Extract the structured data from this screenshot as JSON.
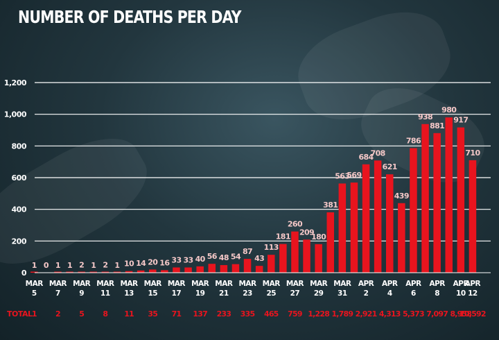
{
  "chart_data": {
    "type": "bar",
    "title": "NUMBER OF DEATHS PER DAY",
    "xlabel": "",
    "ylabel": "",
    "ylim": [
      0,
      1200
    ],
    "yticks": [
      0,
      200,
      400,
      600,
      800,
      1000,
      1200
    ],
    "ytick_labels": [
      "0",
      "200",
      "400",
      "600",
      "800",
      "1,000",
      "1,200"
    ],
    "colors": {
      "bar": "#e8141e",
      "text": "#ffffff",
      "value_label": "#f5c8c8",
      "total": "#e8141e",
      "grid": "#ffffff"
    },
    "values": [
      1,
      0,
      1,
      1,
      2,
      1,
      2,
      1,
      10,
      14,
      20,
      16,
      33,
      33,
      40,
      56,
      48,
      54,
      87,
      43,
      113,
      181,
      260,
      209,
      180,
      381,
      563,
      569,
      684,
      708,
      621,
      439,
      786,
      938,
      881,
      980,
      917,
      710
    ],
    "value_labels": [
      "1",
      "0",
      "1",
      "1",
      "2",
      "1",
      "2",
      "1",
      "10",
      "14",
      "20",
      "16",
      "33",
      "33",
      "40",
      "56",
      "48",
      "54",
      "87",
      "43",
      "113",
      "181",
      "260",
      "209",
      "180",
      "381",
      "563",
      "569",
      "684",
      "708",
      "621",
      "439",
      "786",
      "938",
      "881",
      "980",
      "917",
      "710"
    ],
    "x_ticks": [
      {
        "index": 0,
        "month": "MAR",
        "day": "5"
      },
      {
        "index": 2,
        "month": "MAR",
        "day": "7"
      },
      {
        "index": 4,
        "month": "MAR",
        "day": "9"
      },
      {
        "index": 6,
        "month": "MAR",
        "day": "11"
      },
      {
        "index": 8,
        "month": "MAR",
        "day": "13"
      },
      {
        "index": 10,
        "month": "MAR",
        "day": "15"
      },
      {
        "index": 12,
        "month": "MAR",
        "day": "17"
      },
      {
        "index": 14,
        "month": "MAR",
        "day": "19"
      },
      {
        "index": 16,
        "month": "MAR",
        "day": "21"
      },
      {
        "index": 18,
        "month": "MAR",
        "day": "23"
      },
      {
        "index": 20,
        "month": "MAR",
        "day": "25"
      },
      {
        "index": 22,
        "month": "MAR",
        "day": "27"
      },
      {
        "index": 24,
        "month": "MAR",
        "day": "29"
      },
      {
        "index": 26,
        "month": "MAR",
        "day": "31"
      },
      {
        "index": 28,
        "month": "APR",
        "day": "2"
      },
      {
        "index": 30,
        "month": "APR",
        "day": "4"
      },
      {
        "index": 32,
        "month": "APR",
        "day": "6"
      },
      {
        "index": 34,
        "month": "APR",
        "day": "8"
      },
      {
        "index": 36,
        "month": "APR",
        "day": "10"
      },
      {
        "index": 37,
        "month": "APR",
        "day": "12"
      }
    ],
    "totals_label": "TOTAL",
    "totals": [
      {
        "index": 0,
        "label": "1"
      },
      {
        "index": 2,
        "label": "2"
      },
      {
        "index": 4,
        "label": "5"
      },
      {
        "index": 6,
        "label": "8"
      },
      {
        "index": 8,
        "label": "11"
      },
      {
        "index": 10,
        "label": "35"
      },
      {
        "index": 12,
        "label": "71"
      },
      {
        "index": 14,
        "label": "137"
      },
      {
        "index": 16,
        "label": "233"
      },
      {
        "index": 18,
        "label": "335"
      },
      {
        "index": 20,
        "label": "465"
      },
      {
        "index": 22,
        "label": "759"
      },
      {
        "index": 24,
        "label": "1,228"
      },
      {
        "index": 26,
        "label": "1,789"
      },
      {
        "index": 28,
        "label": "2,921"
      },
      {
        "index": 30,
        "label": "4,313"
      },
      {
        "index": 32,
        "label": "5,373"
      },
      {
        "index": 34,
        "label": "7,097"
      },
      {
        "index": 36,
        "label": "8,958"
      },
      {
        "index": 37,
        "label": "10,592"
      }
    ]
  }
}
